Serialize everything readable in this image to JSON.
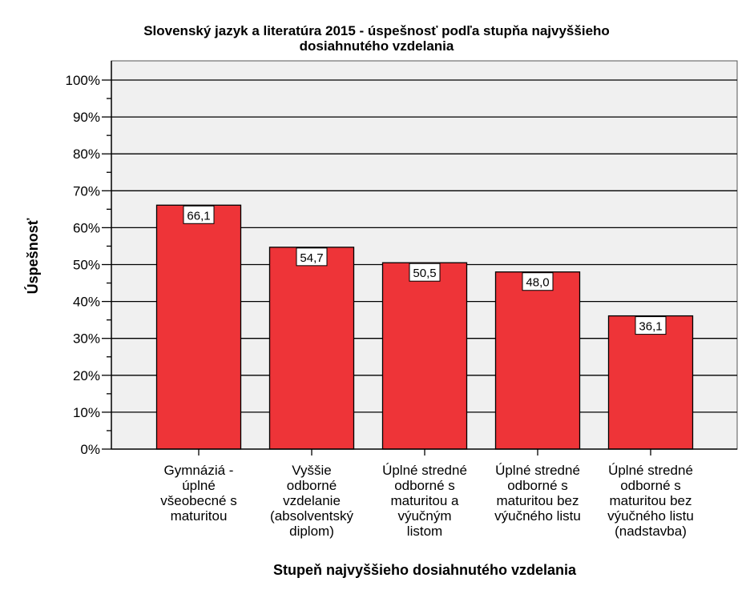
{
  "chart_data": {
    "type": "bar",
    "title_lines": [
      "Slovenský jazyk a literatúra 2015 - úspešnosť podľa stupňa najvyššieho",
      "dosiahnutého vzdelania"
    ],
    "xlabel": "Stupeň najvyššieho dosiahnutého vzdelania",
    "ylabel": "Úspešnosť",
    "ylim": [
      0,
      100
    ],
    "yticks": [
      {
        "value": 0,
        "label": "0%"
      },
      {
        "value": 10,
        "label": "10%"
      },
      {
        "value": 20,
        "label": "20%"
      },
      {
        "value": 30,
        "label": "30%"
      },
      {
        "value": 40,
        "label": "40%"
      },
      {
        "value": 50,
        "label": "50%"
      },
      {
        "value": 60,
        "label": "60%"
      },
      {
        "value": 70,
        "label": "70%"
      },
      {
        "value": 80,
        "label": "80%"
      },
      {
        "value": 90,
        "label": "90%"
      },
      {
        "value": 100,
        "label": "100%"
      }
    ],
    "categories": [
      [
        "Gymnáziá -",
        "úplné",
        "všeobecné s",
        "maturitou"
      ],
      [
        "Vyššie",
        "odborné",
        "vzdelanie",
        "(absolventský",
        "diplom)"
      ],
      [
        "Úplné stredné",
        "odborné s",
        "maturitou a",
        "výučným",
        "listom"
      ],
      [
        "Úplné stredné",
        "odborné s",
        "maturitou bez",
        "výučného listu"
      ],
      [
        "Úplné stredné",
        "odborné s",
        "maturitou bez",
        "výučného listu",
        "(nadstavba)"
      ]
    ],
    "values": [
      66.1,
      54.7,
      50.5,
      48.0,
      36.1
    ],
    "data_labels": [
      "66,1",
      "54,7",
      "50,5",
      "48,0",
      "36,1"
    ],
    "grid": true,
    "colors": {
      "bar": "#ee3438",
      "plot_background": "#f0f0f0",
      "gridline": "#000000"
    }
  }
}
